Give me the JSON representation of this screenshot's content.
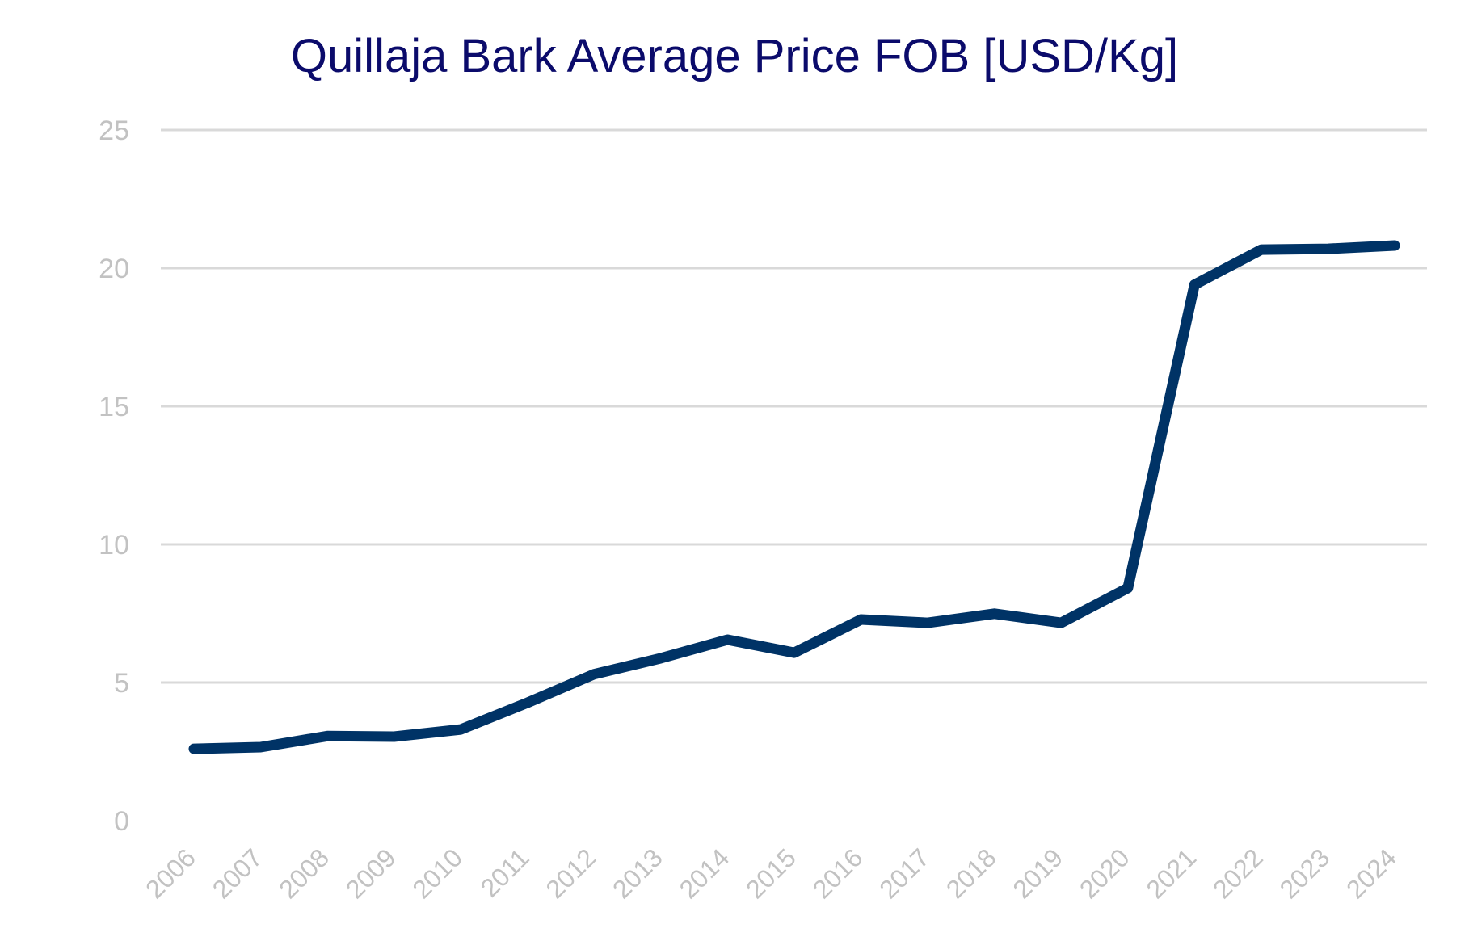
{
  "chart_data": {
    "type": "line",
    "title": "Quillaja Bark Average Price FOB [USD/Kg]",
    "xlabel": "",
    "ylabel": "",
    "categories": [
      "2006",
      "2007",
      "2008",
      "2009",
      "2010",
      "2011",
      "2012",
      "2013",
      "2014",
      "2015",
      "2016",
      "2017",
      "2018",
      "2019",
      "2020",
      "2021",
      "2022",
      "2023",
      "2024"
    ],
    "series": [
      {
        "name": "Average Price FOB (USD/Kg)",
        "color": "#003366",
        "values": [
          2.6,
          2.66,
          3.06,
          3.04,
          3.3,
          4.27,
          5.3,
          5.88,
          6.55,
          6.08,
          7.28,
          7.16,
          7.49,
          7.16,
          8.42,
          19.4,
          20.67,
          20.7,
          20.82
        ]
      }
    ],
    "ylim": [
      0,
      25
    ],
    "yticks": [
      0,
      5,
      10,
      15,
      20,
      25
    ],
    "grid": true,
    "legend": "none"
  },
  "colors": {
    "title": "#0b0b6b",
    "line": "#003366",
    "grid": "#d9d9d9",
    "tick_labels": "#c2c2c2"
  }
}
